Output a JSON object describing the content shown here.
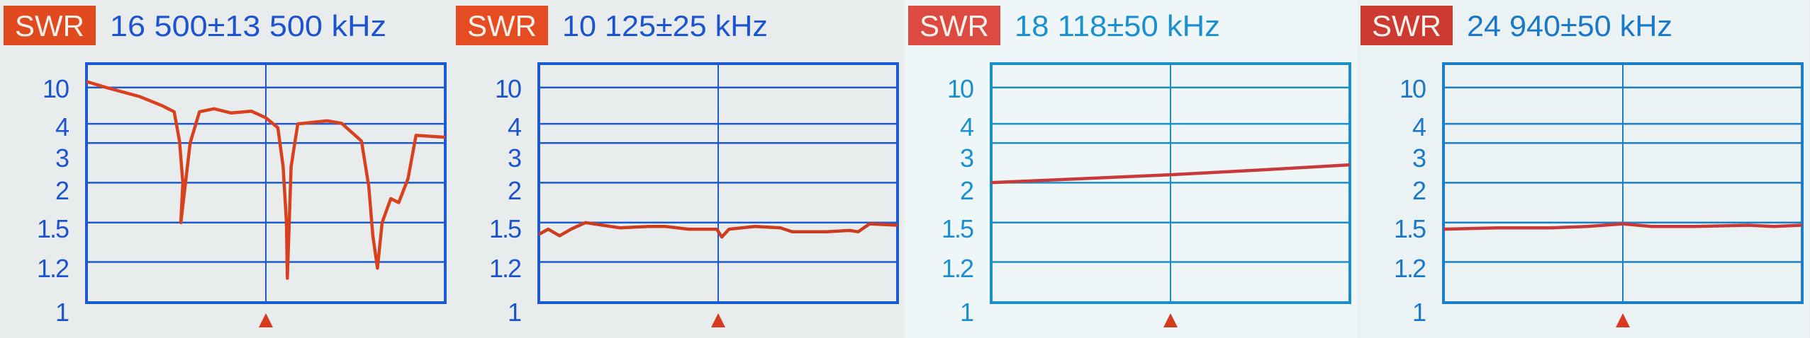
{
  "colors": {
    "background": [
      "#e8ecec",
      "#e9ecec",
      "#eef6f8",
      "#eaf2f4"
    ],
    "frame": [
      "#1c5ad2",
      "#1c5ad2",
      "#1a8fc8",
      "#1a7fc8"
    ],
    "text": [
      "#1c54d0",
      "#1c54d0",
      "#1a90d0",
      "#1a78c8"
    ],
    "badge": [
      "#e04a1e",
      "#e64c22",
      "#dc4a42",
      "#cc3a32"
    ],
    "trace": [
      "#d8401e",
      "#cc3c1e",
      "#c83a3a",
      "#c83a3a"
    ],
    "marker": "#d83a20"
  },
  "chart_data": [
    {
      "type": "line",
      "badge": "SWR",
      "title": "16 500±13 500 kHz",
      "xlim": [
        3000,
        30000
      ],
      "y_scale": "swr",
      "y_ticks": [
        "10",
        "4",
        "3",
        "2",
        "1.5",
        "1.2",
        "1"
      ],
      "grid": true,
      "center_marker": "triangle-up",
      "x": [
        3000,
        4500,
        7000,
        8700,
        9600,
        10000,
        10250,
        10100,
        10800,
        11500,
        12600,
        13900,
        15400,
        16500,
        17400,
        17800,
        18050,
        18118,
        18400,
        18900,
        21100,
        22200,
        23700,
        24250,
        24550,
        24900,
        25250,
        25900,
        26500,
        27200,
        27800,
        30000
      ],
      "y": [
        12,
        10,
        8.5,
        7,
        6,
        3.1,
        2,
        1.5,
        3,
        6,
        6.5,
        5.8,
        6.1,
        5,
        3.8,
        2.4,
        1.5,
        1.12,
        2.4,
        4,
        4.5,
        4.1,
        3.1,
        1.95,
        1.4,
        1.17,
        1.5,
        1.8,
        1.75,
        2.1,
        3.4,
        3.3
      ]
    },
    {
      "type": "line",
      "badge": "SWR",
      "title": "10 125±25 kHz",
      "xlim": [
        10100,
        10150
      ],
      "y_scale": "swr",
      "y_ticks": [
        "10",
        "4",
        "3",
        "2",
        "1.5",
        "1.2",
        "1"
      ],
      "grid": true,
      "center_marker": "triangle-up",
      "x": [
        10100,
        10101.3,
        10102.9,
        10104.5,
        10106.5,
        10108.9,
        10111.3,
        10115.3,
        10117.7,
        10120.9,
        10124.8,
        10125.5,
        10126.5,
        10130.1,
        10133.7,
        10135.3,
        10140.1,
        10143.3,
        10144.5,
        10146.1,
        10150
      ],
      "y": [
        1.41,
        1.45,
        1.4,
        1.45,
        1.5,
        1.48,
        1.46,
        1.47,
        1.47,
        1.45,
        1.45,
        1.39,
        1.45,
        1.47,
        1.46,
        1.43,
        1.43,
        1.44,
        1.43,
        1.49,
        1.48
      ]
    },
    {
      "type": "line",
      "badge": "SWR",
      "title": "18 118±50 kHz",
      "xlim": [
        18068,
        18168
      ],
      "y_scale": "swr",
      "y_ticks": [
        "10",
        "4",
        "3",
        "2",
        "1.5",
        "1.2",
        "1"
      ],
      "grid": true,
      "center_marker": "triangle-up",
      "x": [
        18068,
        18093,
        18118,
        18143,
        18168
      ],
      "y": [
        2.0,
        2.1,
        2.2,
        2.32,
        2.45
      ]
    },
    {
      "type": "line",
      "badge": "SWR",
      "title": "24 940±50 kHz",
      "xlim": [
        24890,
        24990
      ],
      "y_scale": "swr",
      "y_ticks": [
        "10",
        "4",
        "3",
        "2",
        "1.5",
        "1.2",
        "1"
      ],
      "grid": true,
      "center_marker": "triangle-up",
      "x": [
        24890,
        24905,
        24920,
        24930,
        24940,
        24948,
        24960,
        24975,
        24982,
        24990
      ],
      "y": [
        1.45,
        1.46,
        1.46,
        1.47,
        1.49,
        1.47,
        1.47,
        1.48,
        1.47,
        1.48
      ]
    }
  ]
}
